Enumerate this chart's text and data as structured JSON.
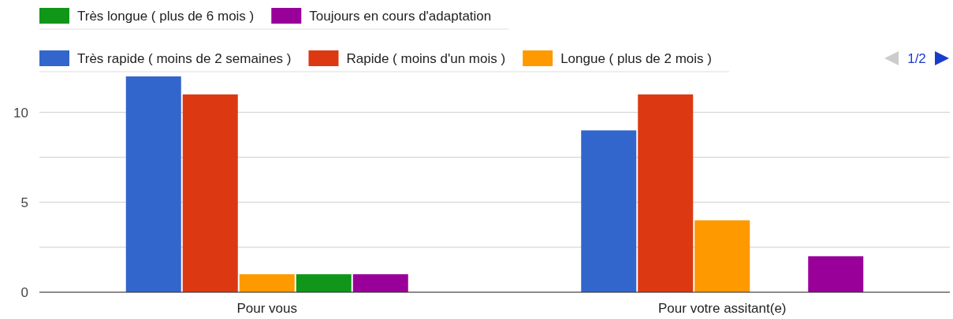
{
  "chart_data": {
    "type": "bar",
    "categories": [
      "Pour vous",
      "Pour votre assitant(e)"
    ],
    "series": [
      {
        "name": "Très rapide ( moins de 2 semaines )",
        "color": "#3366cc",
        "values": [
          12,
          9
        ]
      },
      {
        "name": "Rapide ( moins d'un mois )",
        "color": "#dc3912",
        "values": [
          11,
          11
        ]
      },
      {
        "name": "Longue ( plus de 2 mois )",
        "color": "#ff9900",
        "values": [
          1,
          4
        ]
      },
      {
        "name": "Très longue ( plus de 6 mois )",
        "color": "#109618",
        "values": [
          1,
          0
        ]
      },
      {
        "name": "Toujours en cours d'adaptation",
        "color": "#990099",
        "values": [
          1,
          2
        ]
      }
    ],
    "ylim": [
      0,
      12
    ],
    "yticks": [
      0,
      {
        "value": 2.5,
        "label": null
      },
      5,
      {
        "value": 7.5,
        "label": null
      },
      10
    ],
    "grid": "y",
    "legend": "top",
    "annotations": [
      "1/2"
    ]
  }
}
